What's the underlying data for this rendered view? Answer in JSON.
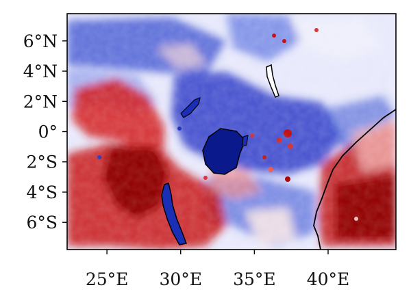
{
  "map": {
    "x_ticks": [
      {
        "value": 25,
        "label": "25°E"
      },
      {
        "value": 30,
        "label": "30°E"
      },
      {
        "value": 35,
        "label": "35°E"
      },
      {
        "value": 40,
        "label": "40°E"
      }
    ],
    "y_ticks": [
      {
        "value": 6,
        "label": "6°N"
      },
      {
        "value": 4,
        "label": "4°N"
      },
      {
        "value": 2,
        "label": "2°N"
      },
      {
        "value": 0,
        "label": "0°"
      },
      {
        "value": -2,
        "label": "2°S"
      },
      {
        "value": -4,
        "label": "4°S"
      },
      {
        "value": -6,
        "label": "6°S"
      }
    ],
    "lon_range": [
      22.3,
      44.6
    ],
    "lat_range": [
      -7.8,
      7.8
    ],
    "colormap": {
      "negative": "#0a1a8c",
      "neutral": "#f1f1ff",
      "positive": "#8b0000"
    },
    "features": [
      "Lake Victoria",
      "Lake Tanganyika",
      "Lake Turkana",
      "Lake Kivu",
      "Indian Ocean coastline"
    ]
  }
}
